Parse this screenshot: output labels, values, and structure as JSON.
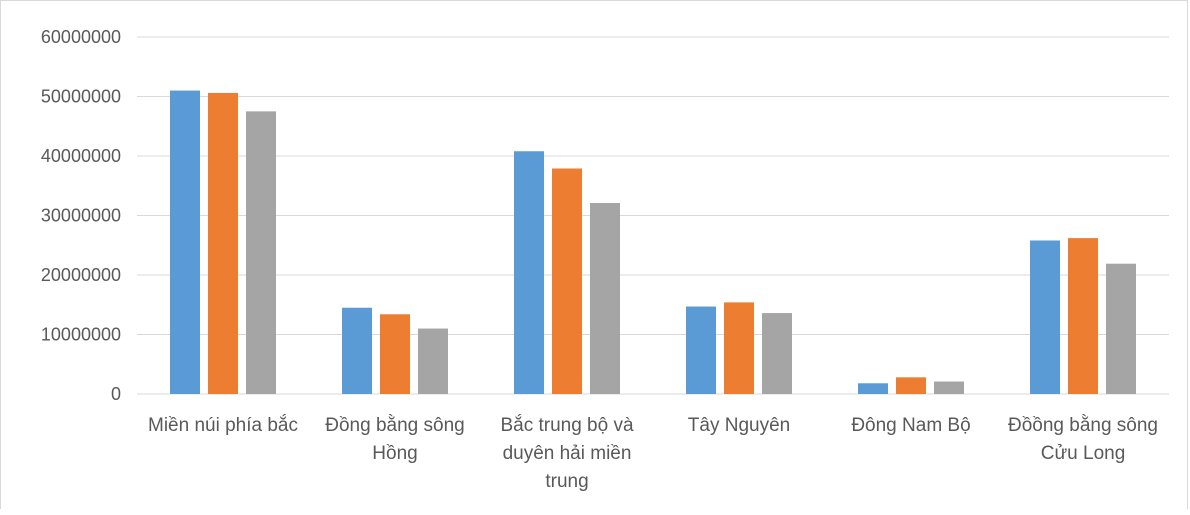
{
  "chart_data": {
    "type": "bar",
    "categories": [
      [
        "Miền núi phía bắc"
      ],
      [
        "Đồng bằng sông",
        "Hồng"
      ],
      [
        "Bắc trung bộ và",
        "duyên hải miền",
        "trung"
      ],
      [
        "Tây Nguyên"
      ],
      [
        "Đông Nam Bộ"
      ],
      [
        "Đồồng bằng sông",
        "Cửu Long"
      ]
    ],
    "series": [
      {
        "color": "#5b9bd5",
        "values": [
          51000000,
          14500000,
          40800000,
          14700000,
          1800000,
          25800000
        ]
      },
      {
        "color": "#ed7d31",
        "values": [
          50600000,
          13400000,
          37900000,
          15400000,
          2800000,
          26200000
        ]
      },
      {
        "color": "#a5a5a5",
        "values": [
          47500000,
          11000000,
          32100000,
          13600000,
          2100000,
          21900000
        ]
      }
    ],
    "yticks": [
      "0",
      "10000000",
      "20000000",
      "30000000",
      "40000000",
      "50000000",
      "60000000"
    ],
    "ylim": [
      0,
      60000000
    ],
    "grid": true,
    "gridColor": "#d9d9d9",
    "legend": "none"
  }
}
